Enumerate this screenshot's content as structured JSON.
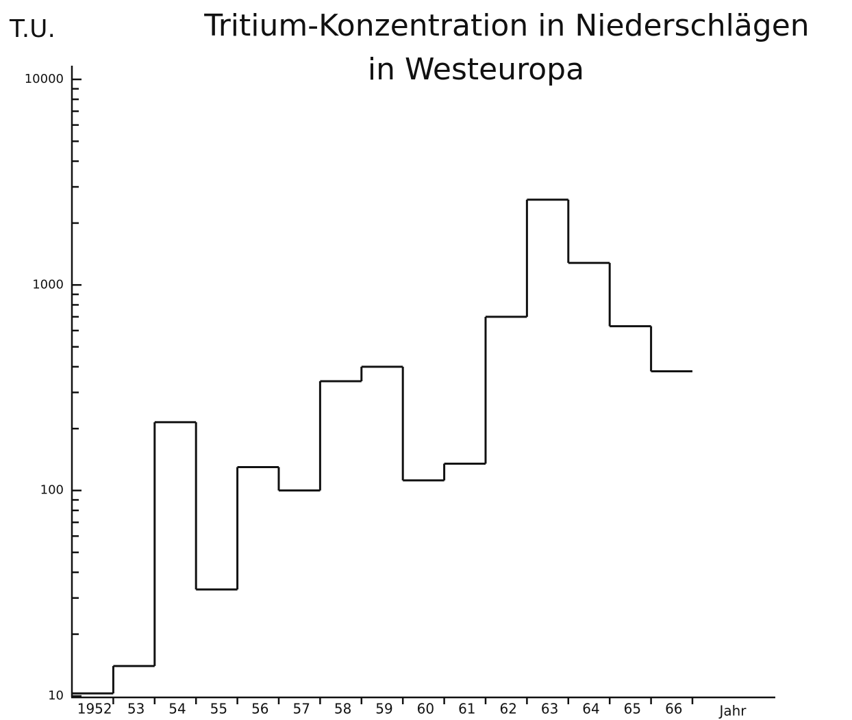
{
  "chart_data": {
    "type": "step",
    "title": "Tritium-Konzentration in Niederschlägen",
    "subtitle": "in Westeuropa",
    "y_label": "T.U.",
    "x_label": "Jahr",
    "categories": [
      "1952",
      "53",
      "54",
      "55",
      "56",
      "57",
      "58",
      "59",
      "60",
      "61",
      "62",
      "63",
      "64",
      "65",
      "66"
    ],
    "values": [
      10.3,
      14,
      215,
      33,
      130,
      100,
      340,
      400,
      112,
      135,
      700,
      2600,
      1280,
      630,
      380
    ],
    "color": "#111111",
    "log_y": true,
    "ylim": [
      10,
      10000
    ],
    "yticks": [
      10,
      100,
      1000,
      10000
    ],
    "minor_yticks": [
      20,
      30,
      40,
      50,
      60,
      70,
      80,
      90,
      200,
      300,
      400,
      500,
      600,
      700,
      800,
      900,
      2000,
      3000,
      4000,
      5000,
      6000,
      7000,
      8000,
      9000
    ]
  }
}
